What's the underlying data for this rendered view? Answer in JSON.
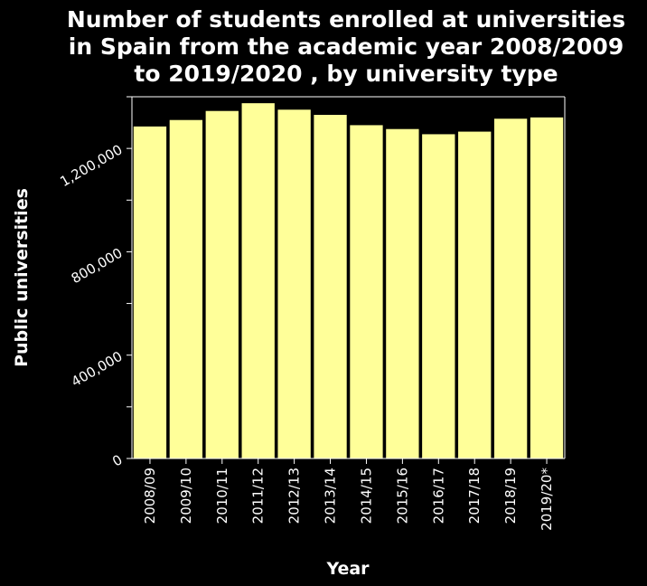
{
  "chart_data": {
    "type": "bar",
    "title_lines": [
      "Number of students enrolled at universities",
      "in Spain from the academic year 2008/2009",
      "to 2019/2020 , by university type"
    ],
    "xlabel": "Year",
    "ylabel": "Public universities",
    "categories": [
      "2008/09",
      "2009/10",
      "2010/11",
      "2011/12",
      "2012/13",
      "2013/14",
      "2014/15",
      "2015/16",
      "2016/17",
      "2017/18",
      "2018/19",
      "2019/20*"
    ],
    "values": [
      1285000,
      1310000,
      1345000,
      1375000,
      1350000,
      1330000,
      1290000,
      1275000,
      1255000,
      1265000,
      1315000,
      1320000
    ],
    "ylim": [
      0,
      1400000
    ],
    "yticks": [
      0,
      400000,
      800000,
      1200000
    ],
    "ytick_labels": [
      "0",
      "400,000",
      "800,000",
      "1,200,000"
    ],
    "minor_yticks": [
      200000,
      600000,
      1000000
    ],
    "grid": false,
    "legend": false,
    "colors": {
      "background": "#000000",
      "bar": "#ffff99",
      "text": "#ffffff",
      "axis": "#ffffff"
    }
  }
}
